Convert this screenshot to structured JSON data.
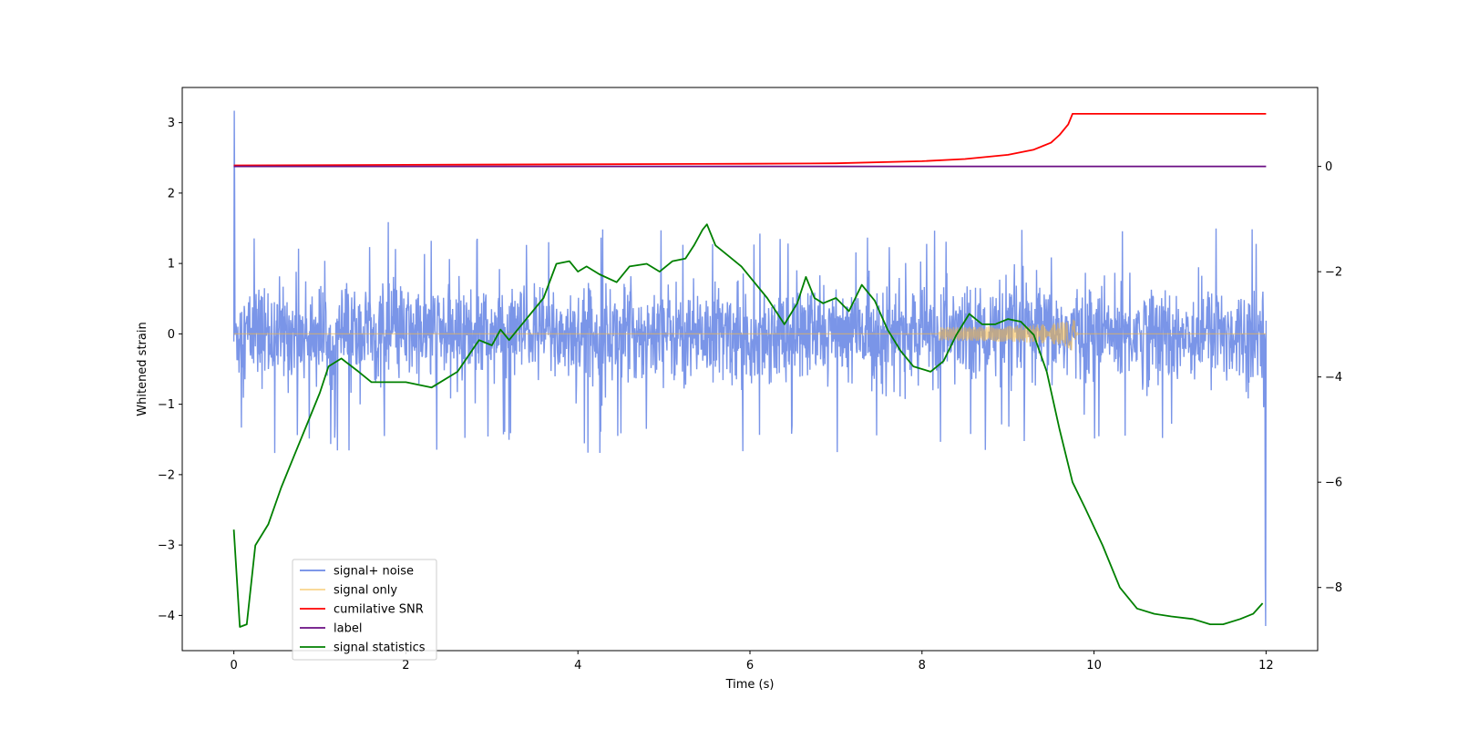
{
  "chart_data": {
    "type": "line",
    "xlabel": "Time (s)",
    "ylabel": "Whitened strain",
    "xlim": [
      -0.6,
      12.6
    ],
    "ylim": [
      -4.5,
      3.5
    ],
    "y2lim": [
      -9.2,
      1.5
    ],
    "x_ticks": [
      0,
      2,
      4,
      6,
      8,
      10,
      12
    ],
    "y_ticks": [
      -4,
      -3,
      -2,
      -1,
      0,
      1,
      2,
      3
    ],
    "y2_ticks": [
      -8,
      -6,
      -4,
      -2,
      0
    ],
    "legend_position": "lower-left",
    "legend": [
      {
        "label": "signal+ noise",
        "color": "#6b8ae6"
      },
      {
        "label": "signal only",
        "color": "#f5b840"
      },
      {
        "label": "cumilative SNR",
        "color": "#ff0000"
      },
      {
        "label": "label",
        "color": "#6a0d83"
      },
      {
        "label": "signal statistics",
        "color": "#008000"
      }
    ],
    "series": [
      {
        "name": "signal+ noise",
        "axis": "left",
        "color": "#6b8ae6",
        "x_range": [
          0,
          12
        ],
        "noise_band": [
          -0.9,
          0.9
        ],
        "spike_range": [
          -1.7,
          1.6
        ],
        "edge_values": {
          "start_peak": 3.17,
          "end_trough": -4.15
        }
      },
      {
        "name": "signal only",
        "axis": "left",
        "color": "#f5b840",
        "x_range": [
          0,
          12
        ],
        "chirp_peak_time": 9.77,
        "chirp_peak_amplitude": 0.42
      },
      {
        "name": "cumilative SNR",
        "axis": "right",
        "color": "#ff0000",
        "x": [
          0,
          2,
          4,
          6,
          7,
          8,
          8.5,
          9,
          9.3,
          9.5,
          9.6,
          9.7,
          9.75,
          9.8,
          12
        ],
        "y": [
          0.02,
          0.03,
          0.04,
          0.05,
          0.06,
          0.1,
          0.14,
          0.22,
          0.32,
          0.45,
          0.6,
          0.8,
          1.0,
          1.0,
          1.0
        ]
      },
      {
        "name": "label",
        "axis": "right",
        "color": "#6a0d83",
        "x": [
          0,
          12
        ],
        "y": [
          0,
          0
        ]
      },
      {
        "name": "signal statistics",
        "axis": "right",
        "color": "#008000",
        "x": [
          0,
          0.07,
          0.15,
          0.25,
          0.4,
          0.55,
          0.7,
          0.85,
          1.0,
          1.1,
          1.25,
          1.45,
          1.6,
          1.8,
          2.0,
          2.3,
          2.6,
          2.85,
          3.0,
          3.1,
          3.2,
          3.4,
          3.6,
          3.75,
          3.9,
          4.0,
          4.1,
          4.25,
          4.45,
          4.6,
          4.8,
          4.95,
          5.1,
          5.25,
          5.35,
          5.45,
          5.5,
          5.6,
          5.75,
          5.9,
          6.05,
          6.2,
          6.4,
          6.55,
          6.65,
          6.75,
          6.85,
          7.0,
          7.15,
          7.3,
          7.45,
          7.6,
          7.75,
          7.9,
          8.1,
          8.25,
          8.4,
          8.55,
          8.7,
          8.85,
          9.0,
          9.15,
          9.3,
          9.45,
          9.6,
          9.75,
          9.9,
          10.1,
          10.3,
          10.5,
          10.7,
          10.9,
          11.15,
          11.35,
          11.5,
          11.7,
          11.85,
          11.96
        ],
        "y": [
          -6.9,
          -8.75,
          -8.7,
          -7.2,
          -6.8,
          -6.1,
          -5.5,
          -4.9,
          -4.3,
          -3.8,
          -3.65,
          -3.9,
          -4.1,
          -4.1,
          -4.1,
          -4.2,
          -3.9,
          -3.3,
          -3.4,
          -3.1,
          -3.3,
          -2.9,
          -2.5,
          -1.85,
          -1.8,
          -2.0,
          -1.9,
          -2.05,
          -2.2,
          -1.9,
          -1.85,
          -2.0,
          -1.8,
          -1.75,
          -1.5,
          -1.2,
          -1.1,
          -1.5,
          -1.7,
          -1.9,
          -2.2,
          -2.5,
          -3.0,
          -2.6,
          -2.1,
          -2.5,
          -2.6,
          -2.5,
          -2.75,
          -2.25,
          -2.55,
          -3.1,
          -3.5,
          -3.8,
          -3.9,
          -3.7,
          -3.2,
          -2.8,
          -3.0,
          -3.0,
          -2.9,
          -2.95,
          -3.2,
          -3.9,
          -5.0,
          -6.0,
          -6.5,
          -7.2,
          -8.0,
          -8.4,
          -8.5,
          -8.55,
          -8.6,
          -8.7,
          -8.7,
          -8.6,
          -8.5,
          -8.3
        ]
      }
    ]
  }
}
